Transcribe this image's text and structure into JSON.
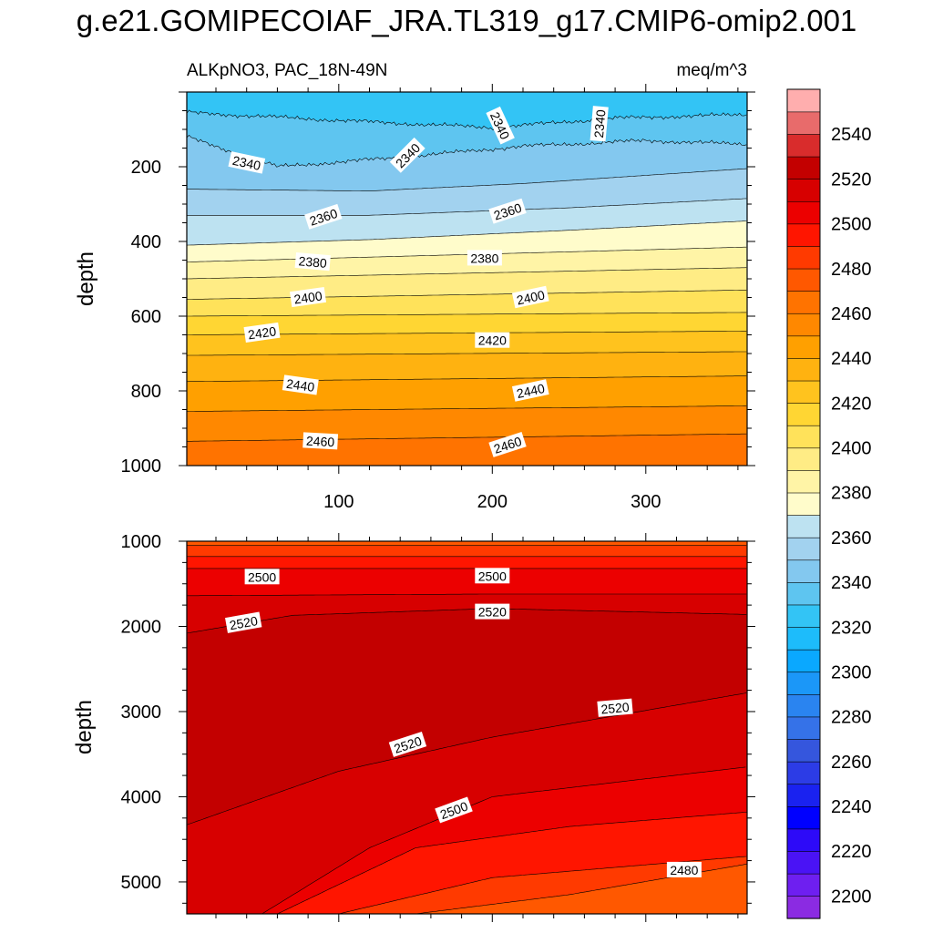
{
  "title": "g.e21.GOMIPECOIAF_JRA.TL319_g17.CMIP6-omip2.001",
  "chart_data": [
    {
      "type": "contour",
      "panel": "top",
      "left_title": "ALKpNO3, PAC_18N-49N",
      "right_title": "meq/m^3",
      "ylabel": "depth",
      "xlabel": "",
      "x_range": [
        1,
        366
      ],
      "y_range": [
        0,
        1000
      ],
      "y_inverted": true,
      "x_ticks": [
        "100",
        "200",
        "300"
      ],
      "x_tick_values": [
        100,
        200,
        300
      ],
      "y_ticks": [
        "200",
        "400",
        "600",
        "800",
        "1000"
      ],
      "y_tick_values": [
        200,
        400,
        600,
        800,
        1000
      ],
      "contour_interval": 10,
      "contours": [
        {
          "level": 2330,
          "depths": [
            [
              1,
              55
            ],
            [
              120,
              80
            ],
            [
              200,
              95
            ],
            [
              280,
              70
            ],
            [
              366,
              60
            ]
          ]
        },
        {
          "level": 2340,
          "depths": [
            [
              1,
              120
            ],
            [
              60,
              200
            ],
            [
              140,
              175
            ],
            [
              220,
              145
            ],
            [
              300,
              130
            ],
            [
              366,
              140
            ]
          ]
        },
        {
          "level": 2350,
          "depths": [
            [
              1,
              260
            ],
            [
              120,
              265
            ],
            [
              220,
              245
            ],
            [
              366,
              205
            ]
          ]
        },
        {
          "level": 2360,
          "depths": [
            [
              1,
              330
            ],
            [
              120,
              330
            ],
            [
              250,
              310
            ],
            [
              366,
              285
            ]
          ]
        },
        {
          "level": 2370,
          "depths": [
            [
              1,
              410
            ],
            [
              120,
              395
            ],
            [
              250,
              370
            ],
            [
              366,
              345
            ]
          ]
        },
        {
          "level": 2380,
          "depths": [
            [
              1,
              455
            ],
            [
              366,
              415
            ]
          ]
        },
        {
          "level": 2390,
          "depths": [
            [
              1,
              500
            ],
            [
              366,
              470
            ]
          ]
        },
        {
          "level": 2400,
          "depths": [
            [
              1,
              555
            ],
            [
              366,
              530
            ]
          ]
        },
        {
          "level": 2410,
          "depths": [
            [
              1,
              600
            ],
            [
              366,
              590
            ]
          ]
        },
        {
          "level": 2420,
          "depths": [
            [
              1,
              650
            ],
            [
              366,
              640
            ]
          ]
        },
        {
          "level": 2430,
          "depths": [
            [
              1,
              705
            ],
            [
              366,
              695
            ]
          ]
        },
        {
          "level": 2440,
          "depths": [
            [
              1,
              775
            ],
            [
              366,
              760
            ]
          ]
        },
        {
          "level": 2450,
          "depths": [
            [
              1,
              855
            ],
            [
              366,
              840
            ]
          ]
        },
        {
          "level": 2460,
          "depths": [
            [
              1,
              935
            ],
            [
              366,
              915
            ]
          ]
        }
      ],
      "labels": [
        {
          "text": "2340",
          "x": 40,
          "y": 190,
          "rotate": 12
        },
        {
          "text": "2340",
          "x": 145,
          "y": 170,
          "rotate": -45
        },
        {
          "text": "2340",
          "x": 205,
          "y": 90,
          "rotate": 65
        },
        {
          "text": "2340",
          "x": 270,
          "y": 85,
          "rotate": -85
        },
        {
          "text": "2360",
          "x": 90,
          "y": 335,
          "rotate": -18
        },
        {
          "text": "2360",
          "x": 210,
          "y": 320,
          "rotate": -18
        },
        {
          "text": "2380",
          "x": 83,
          "y": 455,
          "rotate": 5
        },
        {
          "text": "2380",
          "x": 195,
          "y": 445,
          "rotate": 0
        },
        {
          "text": "2400",
          "x": 80,
          "y": 550,
          "rotate": -8
        },
        {
          "text": "2400",
          "x": 225,
          "y": 550,
          "rotate": -12
        },
        {
          "text": "2420",
          "x": 50,
          "y": 645,
          "rotate": -8
        },
        {
          "text": "2420",
          "x": 200,
          "y": 665,
          "rotate": 0
        },
        {
          "text": "2440",
          "x": 75,
          "y": 785,
          "rotate": 8
        },
        {
          "text": "2440",
          "x": 225,
          "y": 800,
          "rotate": -12
        },
        {
          "text": "2460",
          "x": 88,
          "y": 935,
          "rotate": 3
        },
        {
          "text": "2460",
          "x": 210,
          "y": 945,
          "rotate": -18
        }
      ]
    },
    {
      "type": "contour",
      "panel": "bottom",
      "ylabel": "depth",
      "xlabel": "",
      "x_range": [
        1,
        366
      ],
      "y_range": [
        1000,
        5375
      ],
      "y_inverted": true,
      "y_ticks": [
        "1000",
        "2000",
        "3000",
        "4000",
        "5000"
      ],
      "y_tick_values": [
        1000,
        2000,
        3000,
        4000,
        5000
      ],
      "contour_interval": 10,
      "contours": [
        {
          "level": 2480,
          "depths": [
            [
              1,
              1050
            ],
            [
              366,
              1050
            ]
          ]
        },
        {
          "level": 2490,
          "depths": [
            [
              1,
              1180
            ],
            [
              366,
              1180
            ]
          ]
        },
        {
          "level": 2500,
          "depths": [
            [
              1,
              1320
            ],
            [
              366,
              1320
            ]
          ]
        },
        {
          "level": 2510,
          "depths": [
            [
              1,
              1640
            ],
            [
              200,
              1620
            ],
            [
              366,
              1620
            ]
          ]
        },
        {
          "level": 2520,
          "depths": [
            [
              1,
              2080
            ],
            [
              70,
              1870
            ],
            [
              200,
              1790
            ],
            [
              366,
              1860
            ]
          ]
        },
        {
          "level": 2520,
          "depths": [
            [
              1,
              4330
            ],
            [
              100,
              3700
            ],
            [
              200,
              3300
            ],
            [
              366,
              2780
            ]
          ]
        },
        {
          "level": 2510,
          "depths": [
            [
              50,
              5375
            ],
            [
              120,
              4600
            ],
            [
              200,
              4000
            ],
            [
              366,
              3650
            ]
          ]
        },
        {
          "level": 2500,
          "depths": [
            [
              60,
              5375
            ],
            [
              150,
              4600
            ],
            [
              250,
              4350
            ],
            [
              366,
              4180
            ]
          ]
        },
        {
          "level": 2490,
          "depths": [
            [
              100,
              5375
            ],
            [
              200,
              4950
            ],
            [
              366,
              4700
            ]
          ]
        },
        {
          "level": 2480,
          "depths": [
            [
              150,
              5375
            ],
            [
              250,
              5150
            ],
            [
              366,
              4790
            ]
          ]
        }
      ],
      "labels": [
        {
          "text": "2500",
          "x": 50,
          "y": 1420,
          "rotate": 0
        },
        {
          "text": "2500",
          "x": 200,
          "y": 1410,
          "rotate": 0
        },
        {
          "text": "2520",
          "x": 200,
          "y": 1830,
          "rotate": 0
        },
        {
          "text": "2520",
          "x": 38,
          "y": 1960,
          "rotate": -10
        },
        {
          "text": "2520",
          "x": 280,
          "y": 2960,
          "rotate": -5
        },
        {
          "text": "2520",
          "x": 145,
          "y": 3390,
          "rotate": -18
        },
        {
          "text": "2500",
          "x": 175,
          "y": 4160,
          "rotate": -20
        },
        {
          "text": "2480",
          "x": 325,
          "y": 4860,
          "rotate": 0
        }
      ]
    },
    {
      "type": "colorbar",
      "levels": [
        2200,
        2210,
        2220,
        2230,
        2240,
        2250,
        2260,
        2270,
        2280,
        2290,
        2300,
        2310,
        2320,
        2330,
        2340,
        2350,
        2360,
        2370,
        2380,
        2390,
        2400,
        2410,
        2420,
        2430,
        2440,
        2450,
        2460,
        2470,
        2480,
        2490,
        2500,
        2510,
        2520,
        2530,
        2540,
        2550
      ],
      "tick_labels": [
        "2200",
        "2220",
        "2240",
        "2260",
        "2280",
        "2300",
        "2320",
        "2340",
        "2360",
        "2380",
        "2400",
        "2420",
        "2440",
        "2460",
        "2480",
        "2500",
        "2520",
        "2540"
      ],
      "tick_values": [
        2200,
        2220,
        2240,
        2260,
        2280,
        2300,
        2320,
        2340,
        2360,
        2380,
        2400,
        2420,
        2440,
        2460,
        2480,
        2500,
        2520,
        2540
      ],
      "colors": [
        "#8b2be2",
        "#6e1ff0",
        "#4a13f5",
        "#2d0af8",
        "#0000ff",
        "#1a22f0",
        "#2c3ce6",
        "#3556dd",
        "#3572e8",
        "#2a84f0",
        "#1b97f8",
        "#0aa8ff",
        "#1dbcfb",
        "#33c4f5",
        "#5ec5f0",
        "#83c8ef",
        "#a2d2ef",
        "#bde2f1",
        "#fffccb",
        "#fff4a6",
        "#ffec85",
        "#ffe25a",
        "#ffd633",
        "#ffc31e",
        "#ffb210",
        "#ffa000",
        "#ff8800",
        "#ff7300",
        "#ff5800",
        "#ff3a00",
        "#ff1500",
        "#ec0000",
        "#d70000",
        "#c30000",
        "#d92c2c",
        "#e86b6b",
        "#ffaeae"
      ]
    }
  ]
}
